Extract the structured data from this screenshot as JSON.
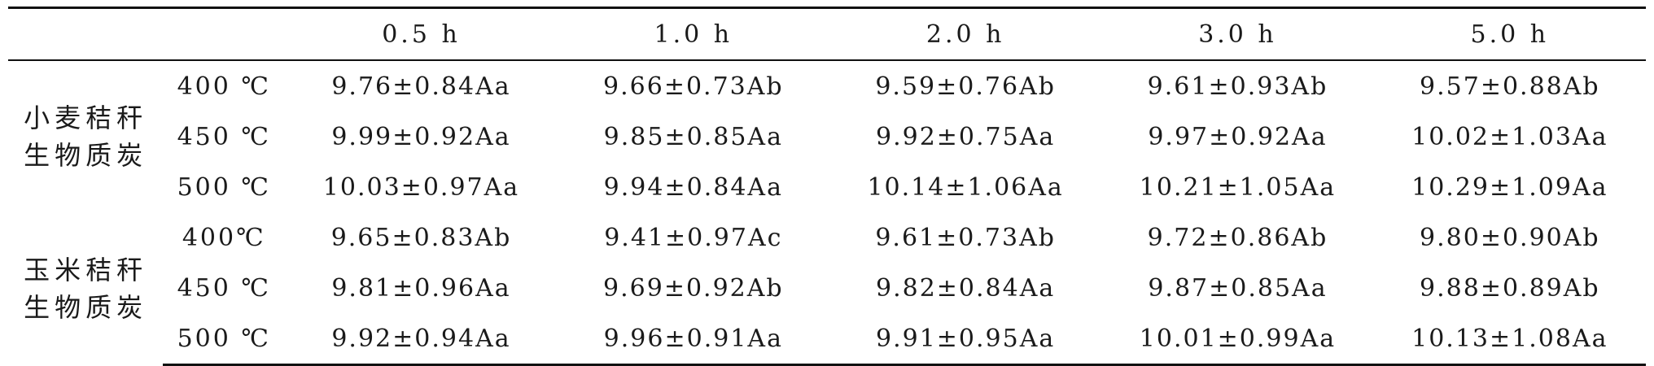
{
  "table": {
    "columns": [
      "0.5 h",
      "1.0 h",
      "2.0 h",
      "3.0 h",
      "5.0 h"
    ],
    "groups": [
      {
        "label": "小麦秸秆生物质炭",
        "rows": [
          {
            "temp": "400 ℃",
            "values": [
              "9.76±0.84Aa",
              "9.66±0.73Ab",
              "9.59±0.76Ab",
              "9.61±0.93Ab",
              "9.57±0.88Ab"
            ]
          },
          {
            "temp": "450 ℃",
            "values": [
              "9.99±0.92Aa",
              "9.85±0.85Aa",
              "9.92±0.75Aa",
              "9.97±0.92Aa",
              "10.02±1.03Aa"
            ]
          },
          {
            "temp": "500 ℃",
            "values": [
              "10.03±0.97Aa",
              "9.94±0.84Aa",
              "10.14±1.06Aa",
              "10.21±1.05Aa",
              "10.29±1.09Aa"
            ]
          }
        ]
      },
      {
        "label": "玉米秸秆生物质炭",
        "rows": [
          {
            "temp": "400℃",
            "values": [
              "9.65±0.83Ab",
              "9.41±0.97Ac",
              "9.61±0.73Ab",
              "9.72±0.86Ab",
              "9.80±0.90Ab"
            ]
          },
          {
            "temp": "450 ℃",
            "values": [
              "9.81±0.96Aa",
              "9.69±0.92Ab",
              "9.82±0.84Aa",
              "9.87±0.85Aa",
              "9.88±0.89Ab"
            ]
          },
          {
            "temp": "500 ℃",
            "values": [
              "9.92±0.94Aa",
              "9.96±0.91Aa",
              "9.91±0.95Aa",
              "10.01±0.99Aa",
              "10.13±1.08Aa"
            ]
          }
        ]
      }
    ]
  }
}
